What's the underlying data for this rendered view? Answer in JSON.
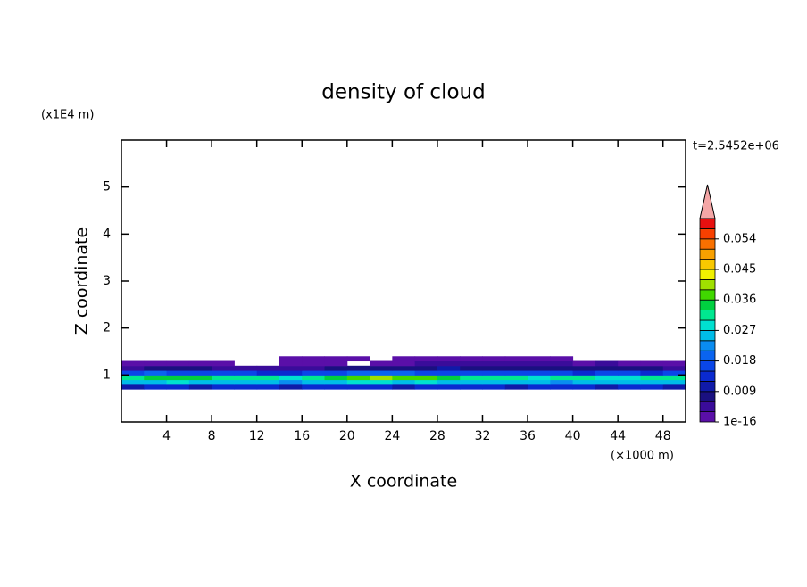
{
  "chart_data": {
    "type": "contour",
    "title": "density of cloud",
    "xlabel": "X coordinate",
    "ylabel": "Z coordinate",
    "xunit": "(×1000 m)",
    "yunit": "(x1E4 m)",
    "annotation": "t=2.5452e+06",
    "xlim": [
      0,
      50
    ],
    "ylim": [
      0,
      6
    ],
    "xticks": [
      4,
      8,
      12,
      16,
      20,
      24,
      28,
      32,
      36,
      40,
      44,
      48
    ],
    "yticks": [
      1,
      2,
      3,
      4,
      5
    ],
    "x": [
      1,
      3,
      5,
      7,
      9,
      11,
      13,
      15,
      17,
      19,
      21,
      23,
      25,
      27,
      29,
      31,
      33,
      35,
      37,
      39,
      41,
      43,
      45,
      47,
      49
    ],
    "y": [
      0.75,
      0.85,
      0.95,
      1.05,
      1.15,
      1.25,
      1.35
    ],
    "values": [
      [
        0.011,
        0.012,
        0.012,
        0.011,
        0.012,
        0.013,
        0.012,
        0.011,
        0.012,
        0.013,
        0.012,
        0.012,
        0.011,
        0.012,
        0.013,
        0.012,
        0.012,
        0.011,
        0.012,
        0.013,
        0.012,
        0.011,
        0.012,
        0.012,
        0.011
      ],
      [
        0.024,
        0.026,
        0.027,
        0.025,
        0.024,
        0.026,
        0.025,
        0.023,
        0.024,
        0.026,
        0.028,
        0.027,
        0.026,
        0.028,
        0.025,
        0.024,
        0.026,
        0.025,
        0.024,
        0.023,
        0.025,
        0.024,
        0.026,
        0.025,
        0.024
      ],
      [
        0.03,
        0.033,
        0.035,
        0.034,
        0.032,
        0.031,
        0.03,
        0.029,
        0.031,
        0.034,
        0.037,
        0.039,
        0.038,
        0.036,
        0.034,
        0.032,
        0.031,
        0.03,
        0.029,
        0.031,
        0.03,
        0.029,
        0.028,
        0.03,
        0.031
      ],
      [
        0.016,
        0.018,
        0.017,
        0.016,
        0.015,
        0.016,
        0.014,
        0.013,
        0.015,
        0.017,
        0.018,
        0.019,
        0.018,
        0.017,
        0.016,
        0.015,
        0.016,
        0.017,
        0.016,
        0.015,
        0.014,
        0.016,
        0.015,
        0.014,
        0.016
      ],
      [
        0.005,
        0.006,
        0.007,
        0.006,
        0.005,
        0.005,
        0.004,
        0.004,
        0.005,
        0.006,
        0.007,
        0.007,
        0.006,
        0.008,
        0.009,
        0.008,
        0.007,
        0.008,
        0.007,
        0.006,
        0.007,
        0.006,
        0.007,
        0.006,
        0.005
      ],
      [
        0.002,
        0.002,
        0.002,
        0.002,
        0.001,
        null,
        null,
        0.001,
        0.002,
        0.001,
        null,
        0.002,
        0.002,
        0.003,
        0.004,
        0.004,
        0.003,
        0.004,
        0.003,
        0.003,
        0.002,
        0.003,
        0.002,
        0.002,
        0.002
      ],
      [
        null,
        null,
        null,
        null,
        null,
        null,
        null,
        0.001,
        0.001,
        0.001,
        0.001,
        null,
        0.001,
        0.001,
        0.001,
        0.002,
        0.002,
        0.002,
        0.001,
        0.001,
        null,
        null,
        null,
        null,
        null
      ]
    ],
    "colorbar": {
      "levels": [
        0,
        0.003,
        0.006,
        0.009,
        0.012,
        0.015,
        0.018,
        0.021,
        0.024,
        0.027,
        0.03,
        0.033,
        0.036,
        0.039,
        0.042,
        0.045,
        0.048,
        0.051,
        0.054,
        0.057,
        0.06
      ],
      "colors": [
        "#5a0fa8",
        "#3a0c9a",
        "#1a1080",
        "#101aa8",
        "#0a2ad0",
        "#0a46e8",
        "#0a64f0",
        "#0a8cf0",
        "#00bce8",
        "#00e0d0",
        "#00e890",
        "#00d040",
        "#40d800",
        "#a0e000",
        "#f0f000",
        "#f8c800",
        "#f8a000",
        "#f87000",
        "#f84000",
        "#e81010"
      ],
      "over_color": "#f4a6a6",
      "ticks": [
        1e-16,
        0.009,
        0.018,
        0.027,
        0.036,
        0.045,
        0.054
      ]
    }
  }
}
